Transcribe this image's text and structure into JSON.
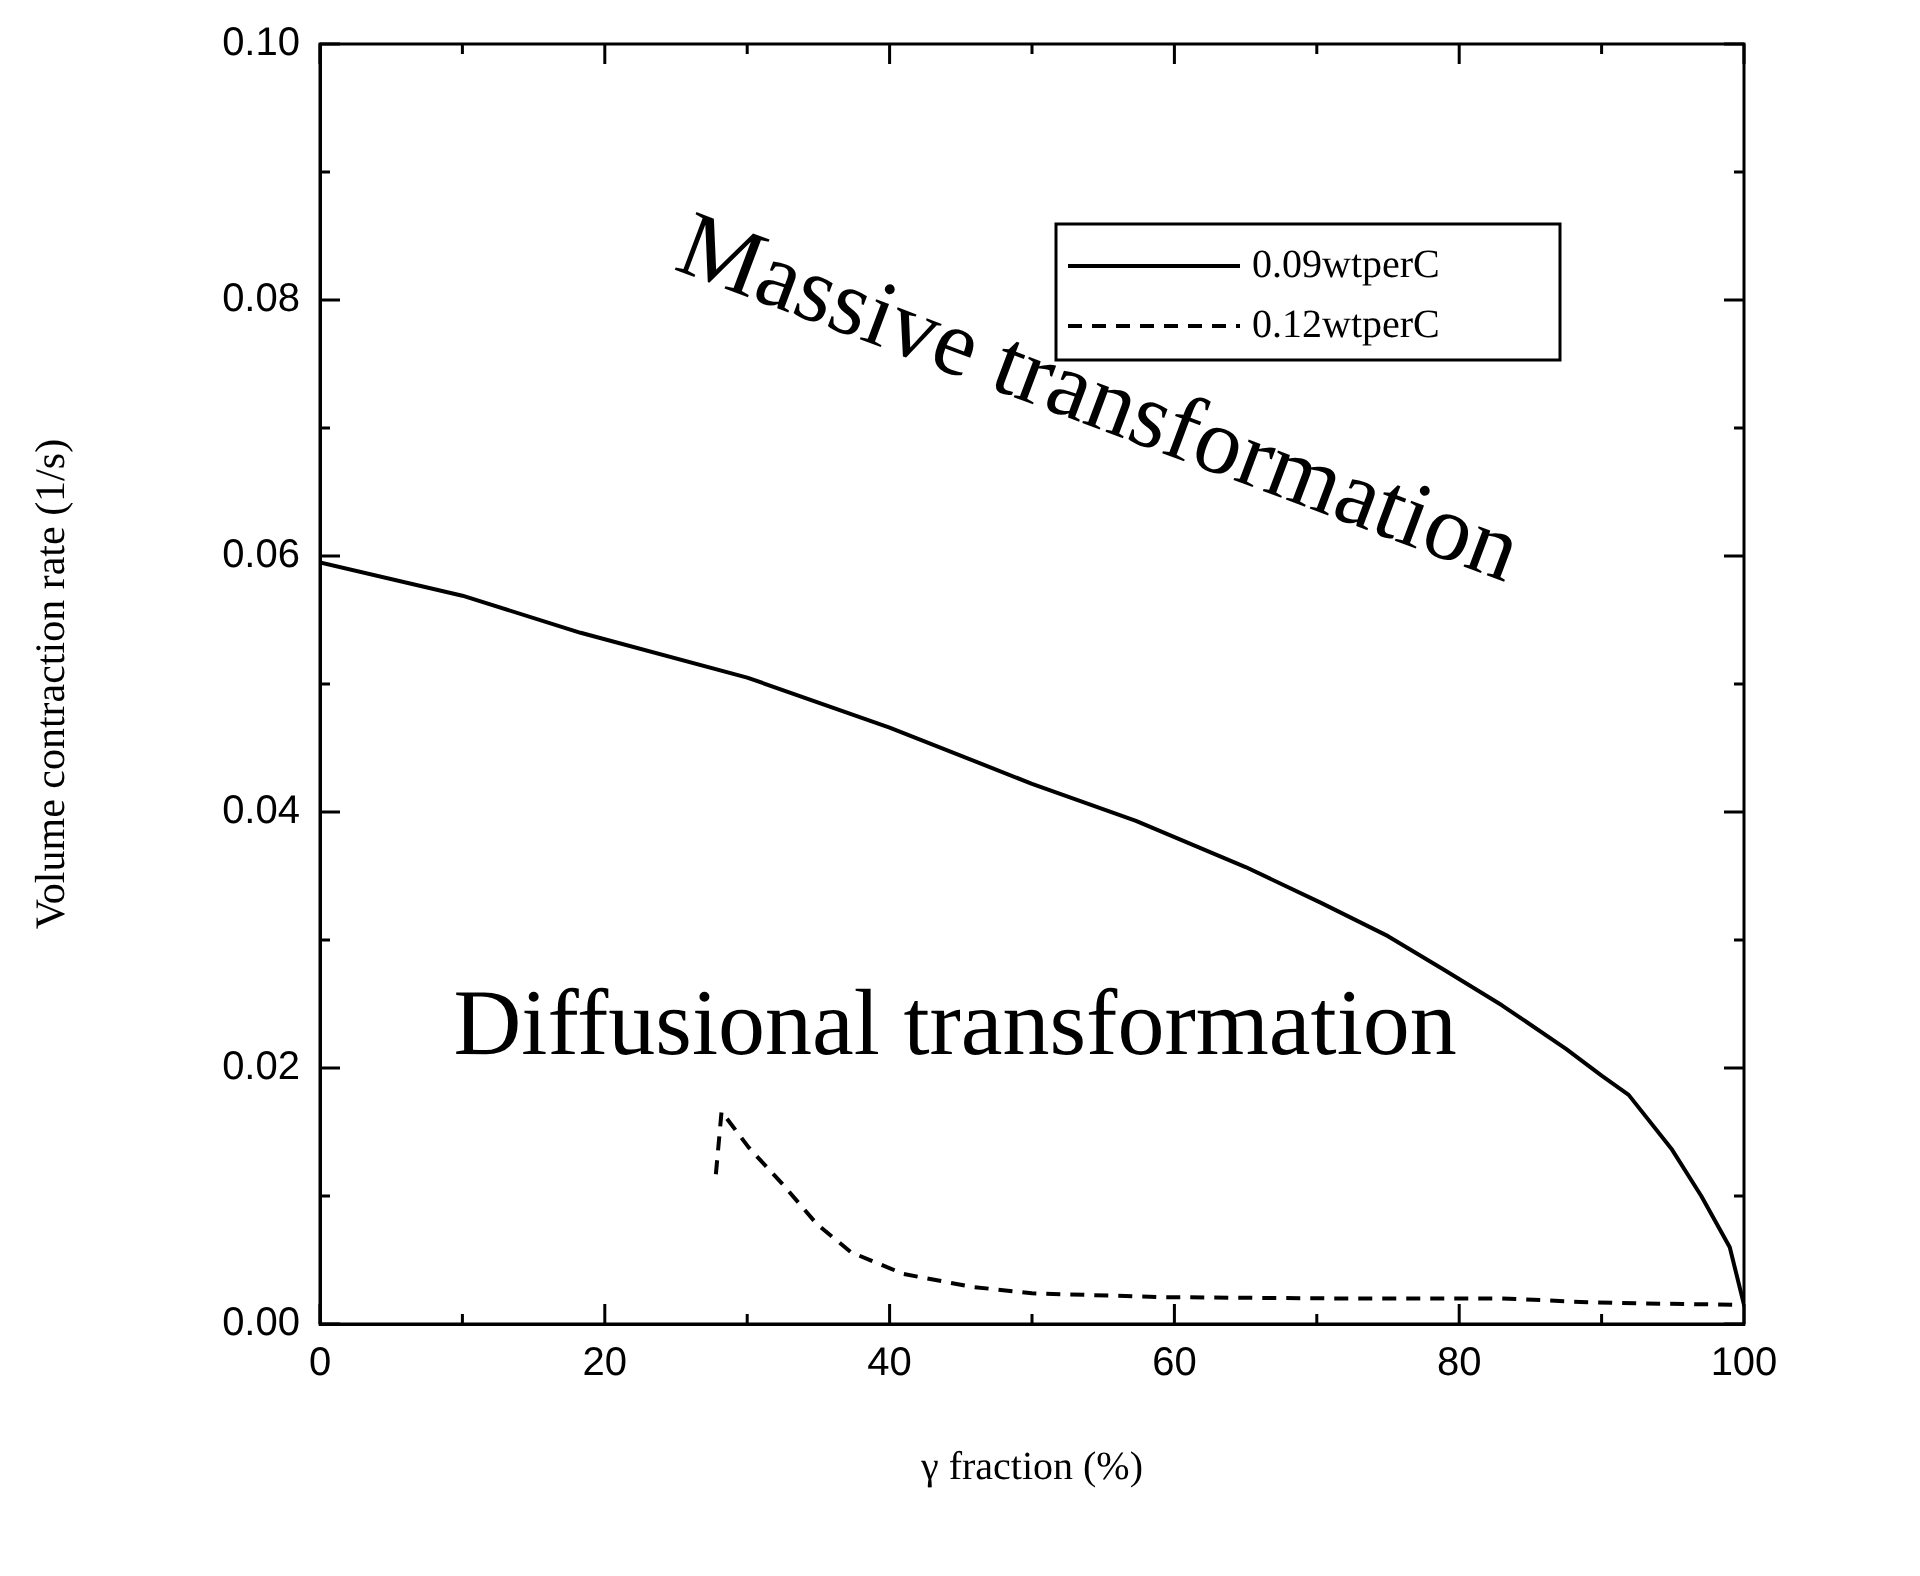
{
  "chart_data": {
    "type": "line",
    "xlabel": "γ fraction (%)",
    "ylabel": "Volume contraction rate (1/s)",
    "xlim": [
      0,
      100
    ],
    "xticks": [
      0,
      20,
      40,
      60,
      80,
      100
    ],
    "ylim": [
      0,
      0.1
    ],
    "yticks": [
      {
        "value": 0,
        "label": "0.00"
      },
      {
        "value": 0.02,
        "label": "0.02"
      },
      {
        "value": 0.04,
        "label": "0.04"
      },
      {
        "value": 0.06,
        "label": "0.06"
      },
      {
        "value": 0.08,
        "label": "0.08"
      },
      {
        "value": 0.1,
        "label": "0.10"
      }
    ],
    "grid": false,
    "legend": "top right",
    "marker": "none",
    "series": [
      {
        "name": "0.09wtperC",
        "color": "#000000",
        "line_style": "solid",
        "x": [
          0,
          10,
          18.3,
          30,
          40,
          50,
          57.3,
          65,
          70.3,
          75,
          78.9,
          83,
          87.5,
          90,
          91.9,
          94.9,
          97,
          99,
          100
        ],
        "values": [
          0.0595,
          0.0569,
          0.054,
          0.0505,
          0.0466,
          0.0422,
          0.0393,
          0.0357,
          0.0329,
          0.0303,
          0.0277,
          0.0249,
          0.0215,
          0.0194,
          0.0179,
          0.0137,
          0.01,
          0.006,
          0.0015
        ]
      },
      {
        "name": "0.12wtperC",
        "color": "#000000",
        "line_style": "dashed",
        "x": [
          27.8,
          28.2,
          30.1,
          32.5,
          34.9,
          37.3,
          41,
          45.8,
          50,
          59,
          71,
          83,
          89,
          93,
          100
        ],
        "values": [
          0.0117,
          0.0166,
          0.0138,
          0.0109,
          0.0078,
          0.0056,
          0.0039,
          0.0029,
          0.0024,
          0.0021,
          0.002,
          0.002,
          0.0017,
          0.0016,
          0.0015
        ]
      }
    ],
    "annotations": [
      "Massive transformation",
      "Diffusional transformation"
    ]
  }
}
